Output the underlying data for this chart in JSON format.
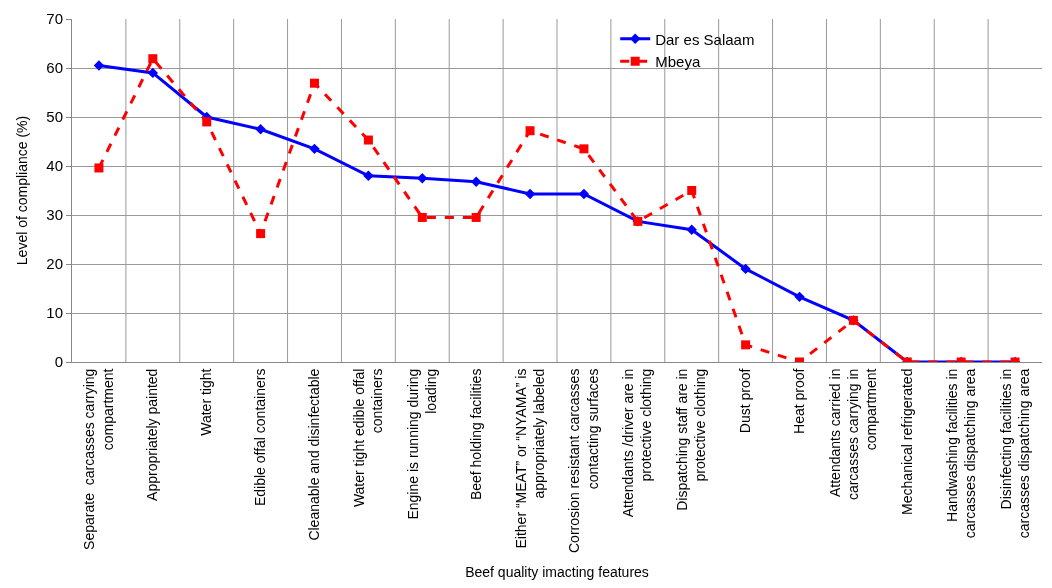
{
  "chart_data": {
    "type": "line",
    "xlabel": "Beef quality imacting features",
    "ylabel": "Level of compliance (%)",
    "categories": [
      "Separate  carcasses carrying compartment",
      "Appropriately painted",
      "Water tight",
      "Edible offal containers",
      "Cleanable and disinfectable",
      "Water tight edible offal containers",
      "Engine is running during loading",
      "Beef holding facilities",
      "Either “MEAT” or “NYAMA” is appropriately labeled",
      "Corrosion resistant carcasses contacting surfaces",
      "Attendants /driver are in protective clothing",
      "Dispatching staff are in protective clothing",
      "Dust proof",
      "Heat proof",
      "Attendants carried in carcasses carrying in compartment",
      "Mechanical refrigerated",
      "Handwashing facilities in carcasses dispatching area",
      "Disinfecting facilities in carcasses dispatching area"
    ],
    "series": [
      {
        "name": "Dar es Salaam",
        "color": "#0000ff",
        "marker": "diamond",
        "line_style": "solid",
        "values": [
          60.5,
          59,
          50,
          47.5,
          43.5,
          38,
          37.5,
          36.8,
          34.3,
          34.3,
          28.7,
          27,
          19,
          13.3,
          8.5,
          0,
          0,
          0
        ]
      },
      {
        "name": "Mbeya",
        "color": "#ff0000",
        "marker": "square",
        "line_style": "dashed",
        "values": [
          39.6,
          61.9,
          49,
          26.2,
          56.9,
          45.3,
          29.5,
          29.5,
          47.2,
          43.5,
          28.7,
          35,
          3.5,
          0,
          8.5,
          0,
          0,
          0
        ]
      }
    ],
    "ylim": [
      0,
      70
    ],
    "yticks": [
      0,
      10,
      20,
      30,
      40,
      50,
      60,
      70
    ],
    "grid": true,
    "legend": "top right"
  }
}
